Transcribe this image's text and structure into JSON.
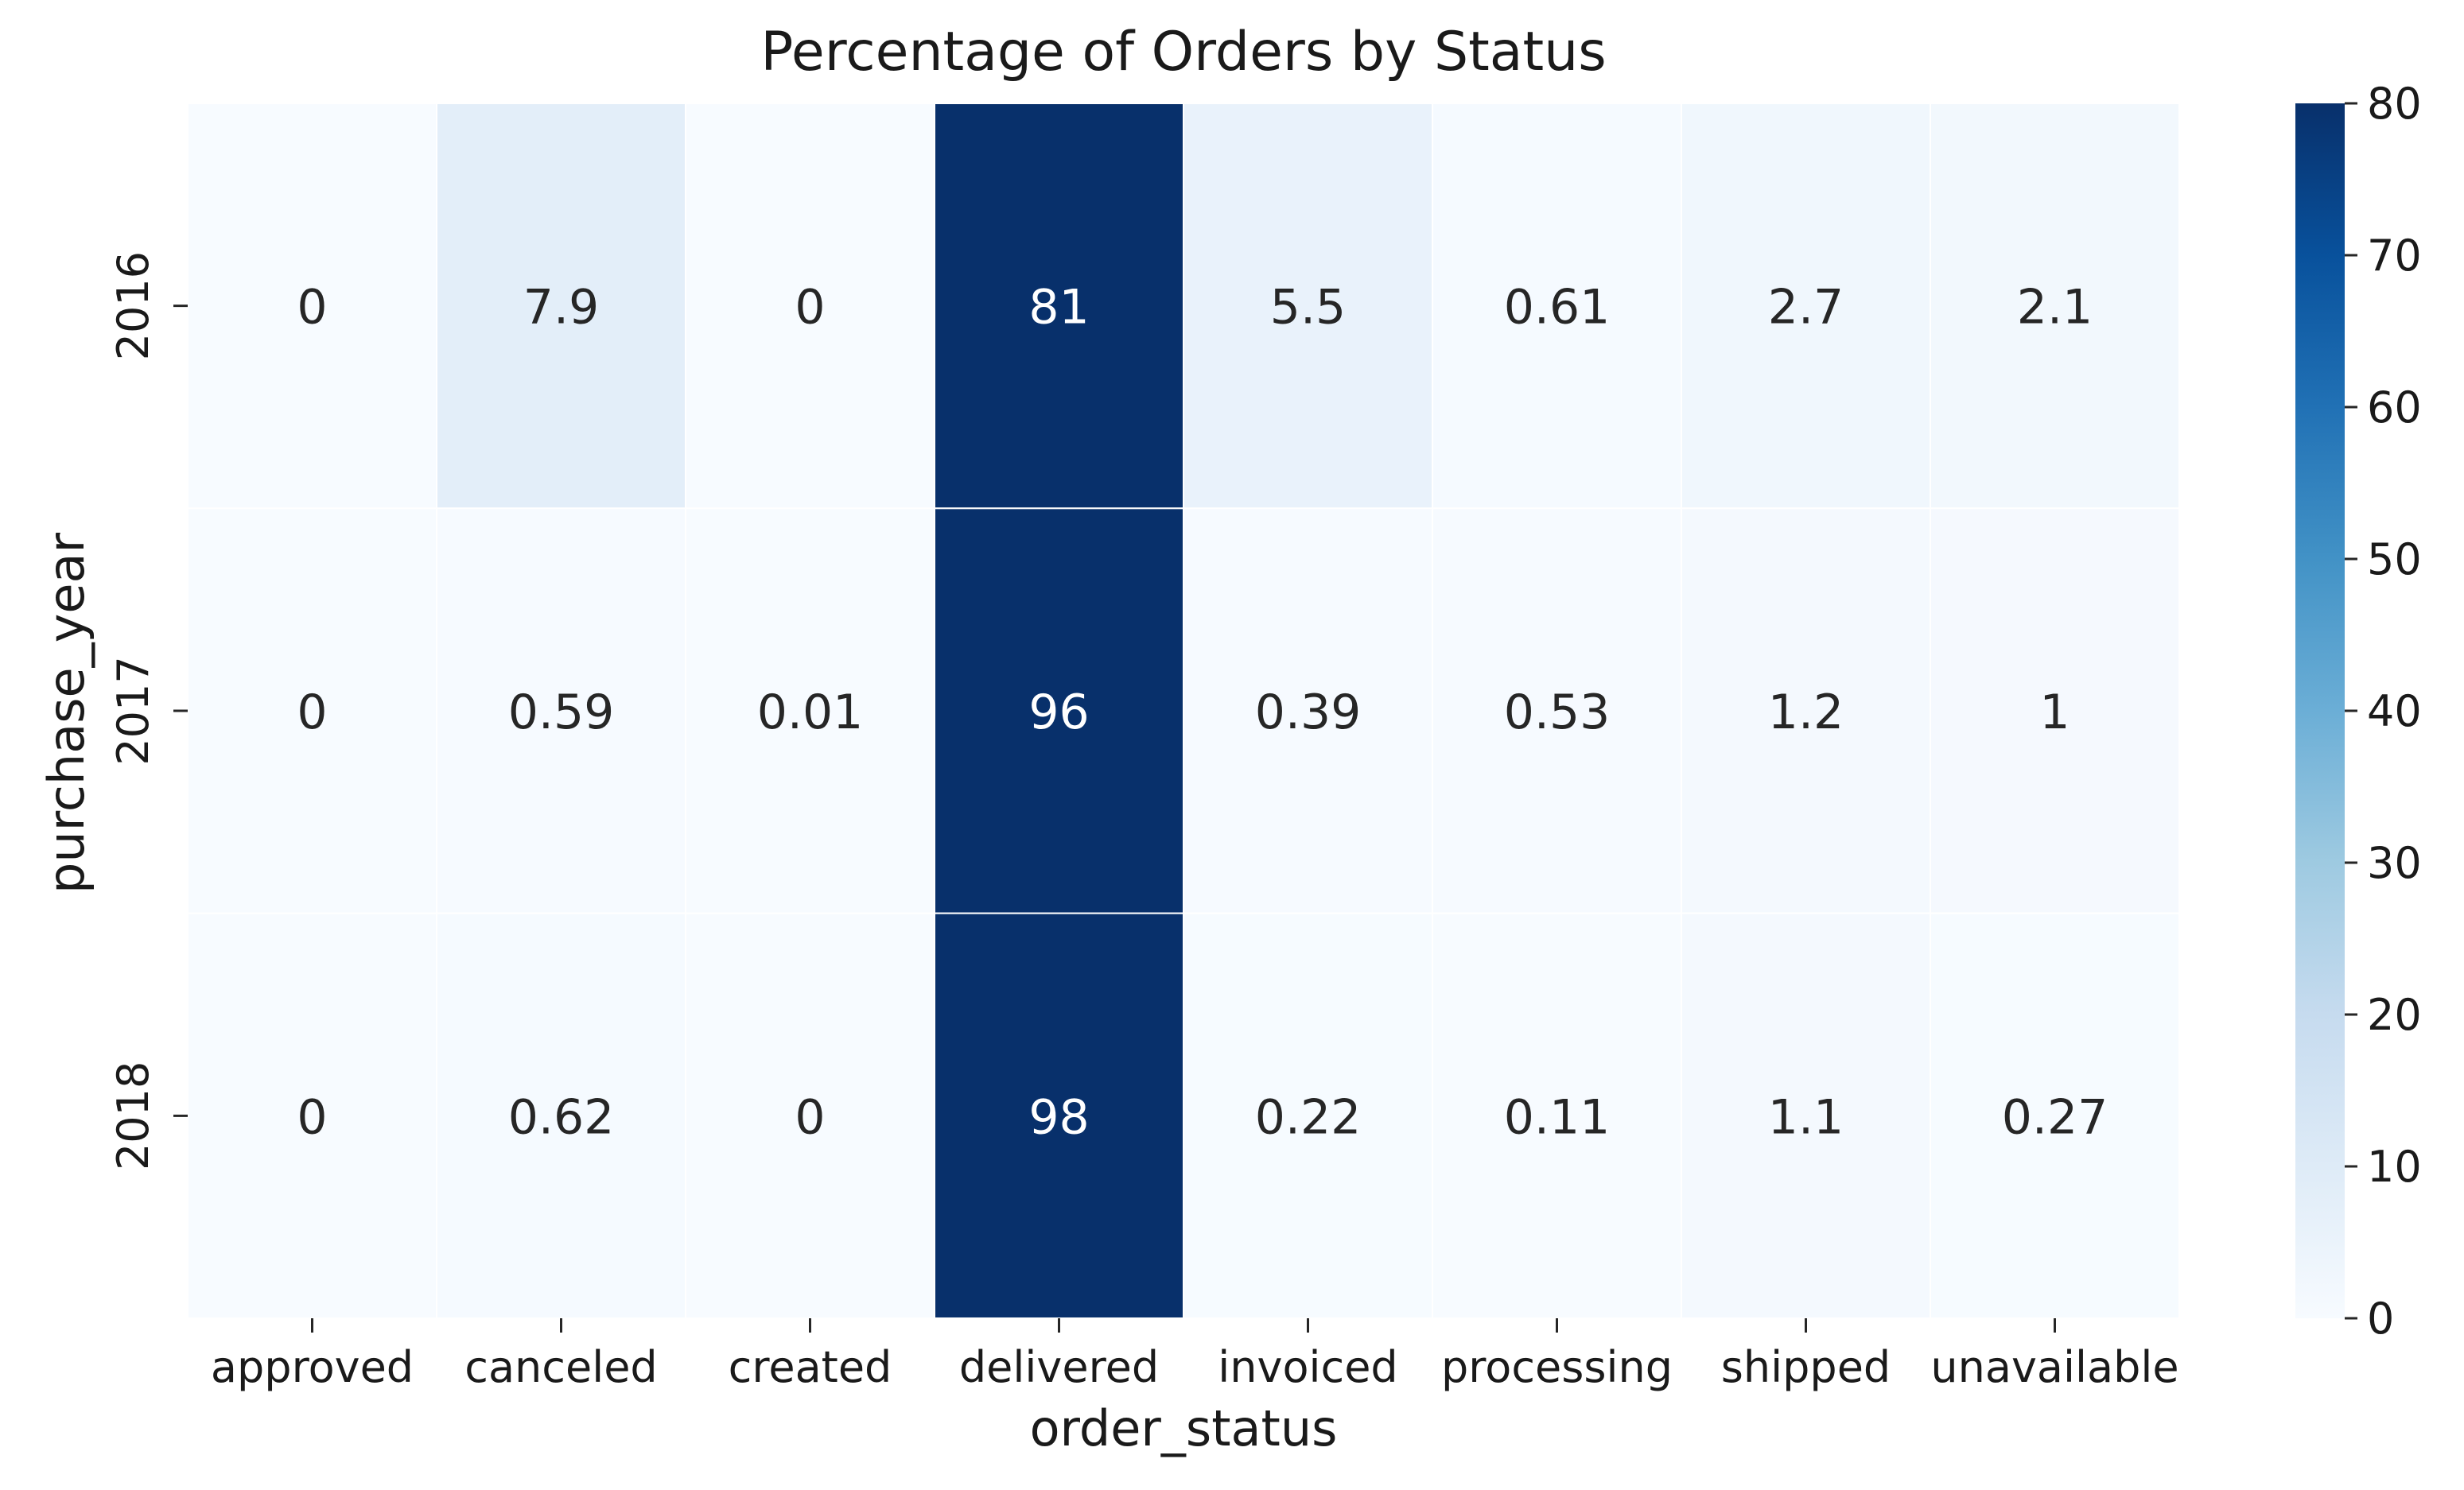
{
  "chart_data": {
    "type": "heatmap",
    "title": "Percentage of Orders by Status",
    "xlabel": "order_status",
    "ylabel": "purchase_year",
    "x_categories": [
      "approved",
      "canceled",
      "created",
      "delivered",
      "invoiced",
      "processing",
      "shipped",
      "unavailable"
    ],
    "y_categories": [
      "2016",
      "2017",
      "2018"
    ],
    "values": [
      [
        0,
        7.9,
        0,
        81,
        5.5,
        0.61,
        2.7,
        2.1
      ],
      [
        0,
        0.59,
        0.01,
        96,
        0.39,
        0.53,
        1.2,
        1
      ],
      [
        0,
        0.62,
        0,
        98,
        0.22,
        0.11,
        1.1,
        0.27
      ]
    ],
    "annotations": [
      [
        "0",
        "7.9",
        "0",
        "81",
        "5.5",
        "0.61",
        "2.7",
        "2.1"
      ],
      [
        "0",
        "0.59",
        "0.01",
        "96",
        "0.39",
        "0.53",
        "1.2",
        "1"
      ],
      [
        "0",
        "0.62",
        "0",
        "98",
        "0.22",
        "0.11",
        "1.1",
        "0.27"
      ]
    ],
    "colorbar": {
      "vmin": 0,
      "vmax": 80,
      "ticks": [
        0,
        10,
        20,
        30,
        40,
        50,
        60,
        70,
        80
      ]
    },
    "colormap": "Blues",
    "colors": [
      "#f7fbff",
      "#deebf7",
      "#c6dbef",
      "#9ecae1",
      "#6baed6",
      "#4292c6",
      "#2171b5",
      "#08519c",
      "#08306b"
    ],
    "grid": false
  }
}
